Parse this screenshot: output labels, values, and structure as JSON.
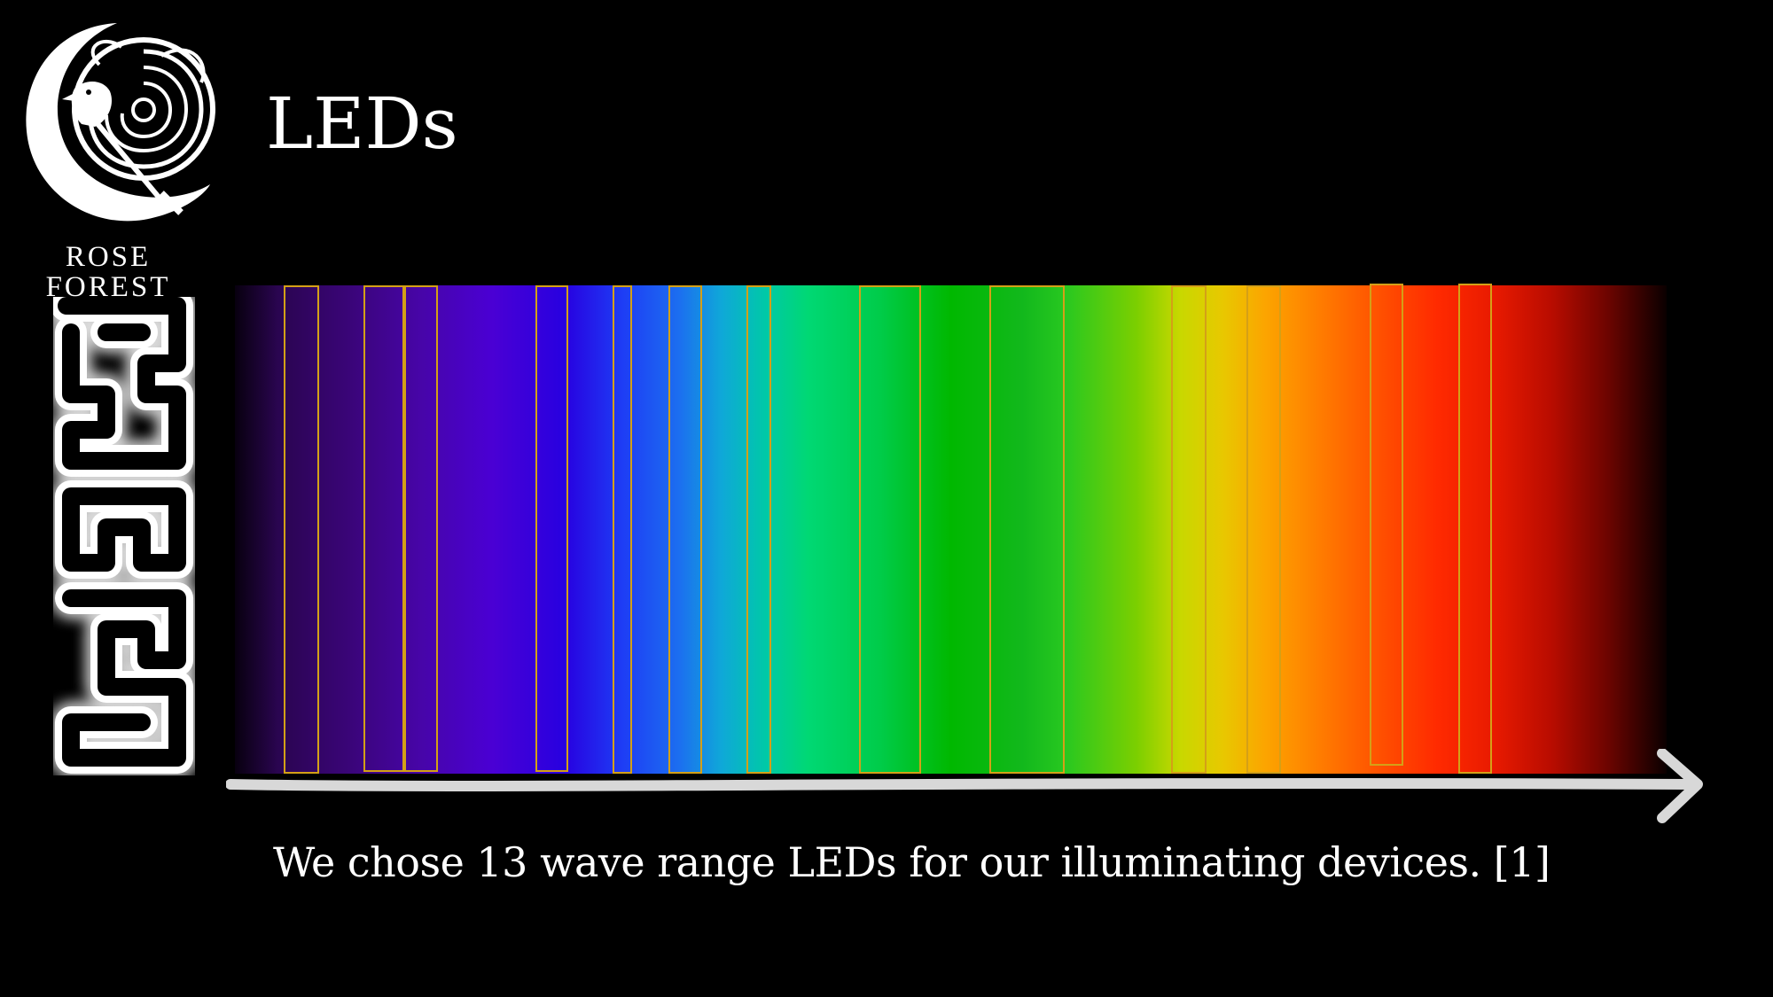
{
  "slide": {
    "title": "LEDs",
    "caption": "We chose 13 wave range LEDs for our illuminating devices. [1]"
  },
  "logo": {
    "name_line1": "ROSE",
    "name_line2": "FOREST"
  },
  "icons": {
    "logo_mark": "crescent-moon-rose-bird-icon",
    "side_glyph": "interlocking-key-pattern-icon",
    "axis_arrow": "arrow-right-icon"
  },
  "spectrum": {
    "led_box_count": 13,
    "box_color": "#d4a017"
  }
}
